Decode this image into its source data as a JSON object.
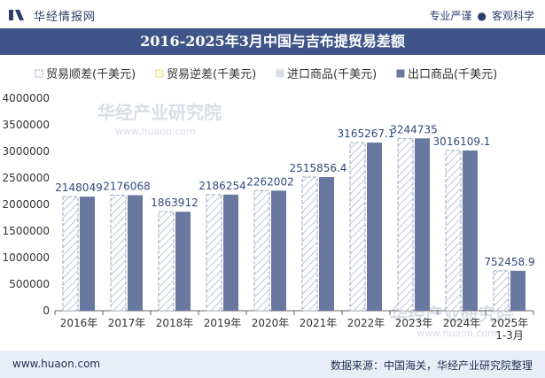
{
  "header": {
    "brand": "华经情报网",
    "tag1": "专业严谨",
    "tag2": "客观科学"
  },
  "footer": {
    "website": "www.huaon.com",
    "source": "数据来源：中国海关，华经产业研究院整理"
  },
  "colors": {
    "title_bg": "#3f5589",
    "export_bar": "#6878a1",
    "import_bar": "#d9dde6",
    "hatch_line": "#bcc6d8"
  },
  "chart_data": {
    "type": "bar",
    "title": "2016-2025年3月中国与吉布提贸易差额",
    "categories": [
      "2016年",
      "2017年",
      "2018年",
      "2019年",
      "2020年",
      "2021年",
      "2022年",
      "2023年",
      "2024年",
      "2025年\n1-3月"
    ],
    "series": [
      {
        "name": "贸易顺差(千美元)",
        "values": [
          2148049,
          2176068,
          1863912,
          2186254,
          2262002,
          2515856.4,
          3165267.1,
          3244735,
          3016109.1,
          752458.9
        ]
      },
      {
        "name": "贸易逆差(千美元)",
        "values": [
          0,
          0,
          0,
          0,
          0,
          0,
          0,
          0,
          0,
          0
        ]
      },
      {
        "name": "进口商品(千美元)",
        "values": [
          0,
          0,
          0,
          0,
          0,
          0,
          0,
          0,
          0,
          0
        ]
      },
      {
        "name": "出口商品(千美元)",
        "values": [
          2148049,
          2176068,
          1863912,
          2186254,
          2262002,
          2515856.4,
          3165267.1,
          3244735,
          3016109.1,
          752458.9
        ]
      }
    ],
    "data_labels": [
      "2148049",
      "2176068",
      "1863912",
      "2186254",
      "2262002",
      "2515856.4",
      "3165267.1",
      "3244735",
      "3016109.1",
      "752458.9"
    ],
    "yticks": [
      "0",
      "500000",
      "1000000",
      "1500000",
      "2000000",
      "2500000",
      "3000000",
      "3500000",
      "4000000"
    ],
    "ylim": [
      0,
      4000000
    ],
    "legend_position": "top-left",
    "watermark": "华经产业研究院",
    "watermark_url": "www.huaon.com"
  }
}
